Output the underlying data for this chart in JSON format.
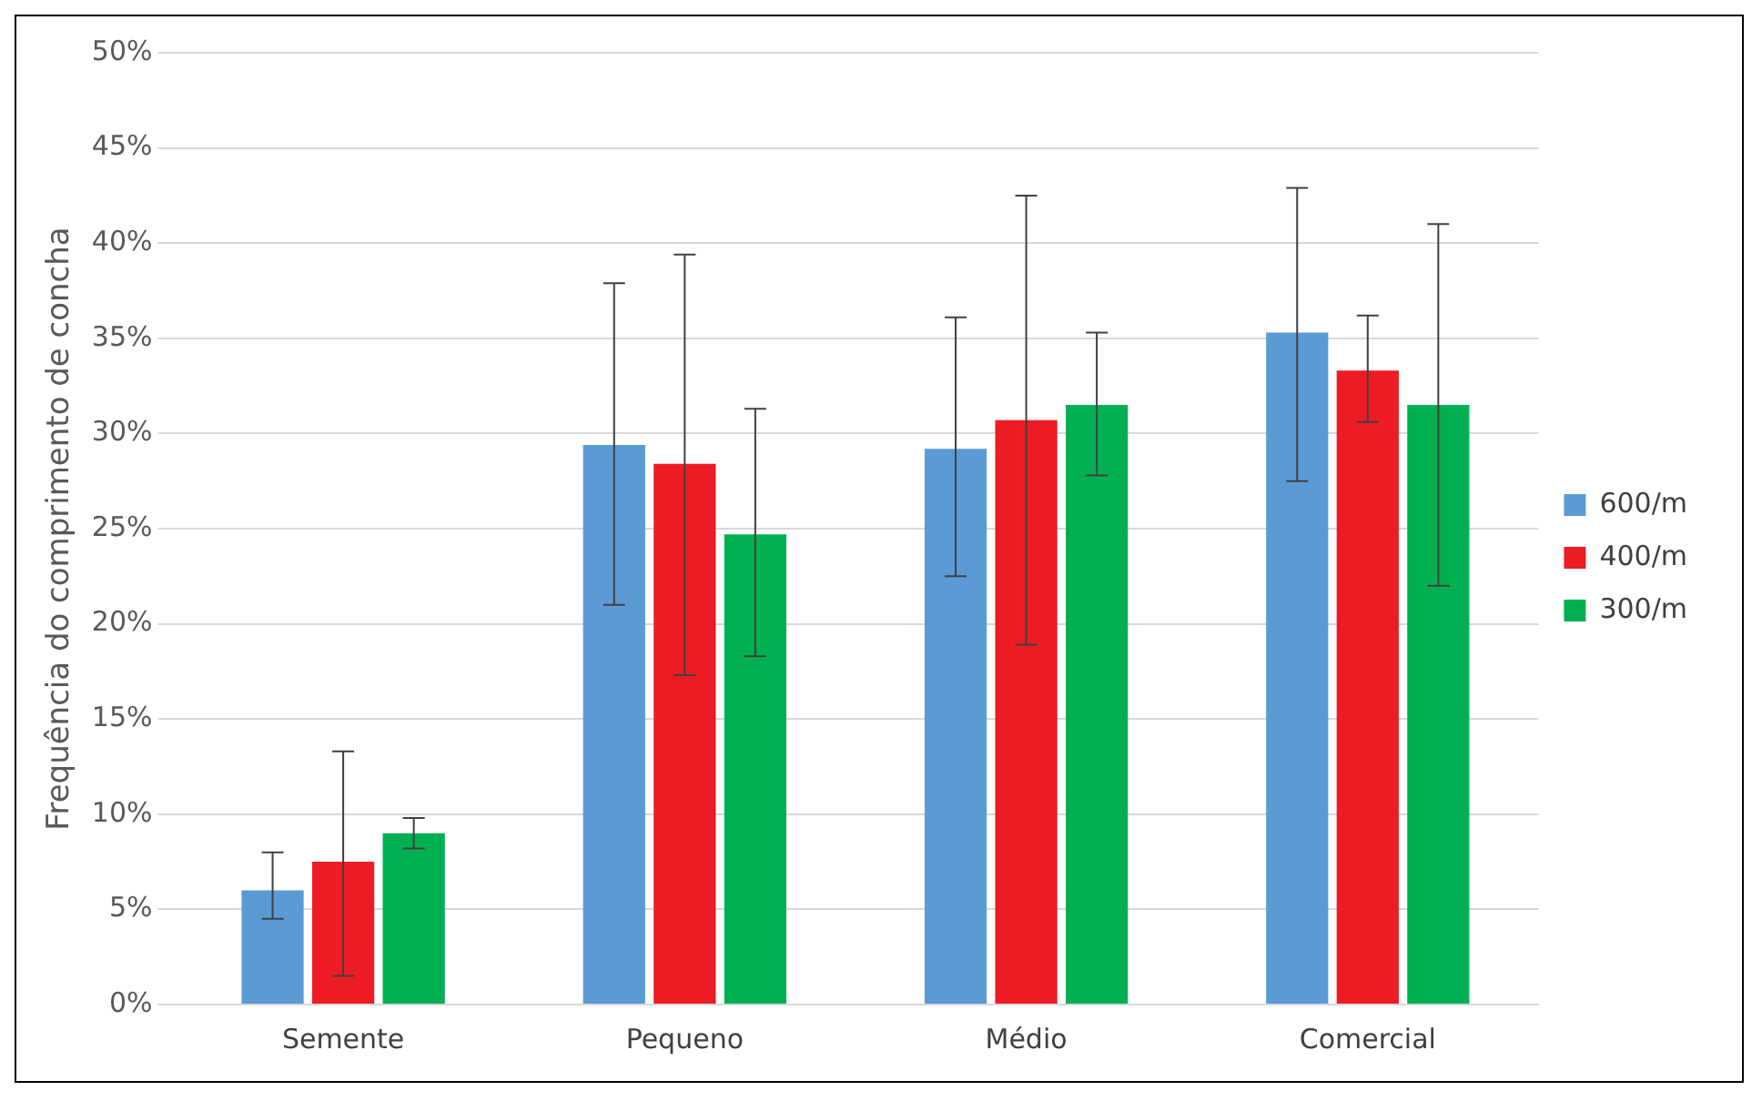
{
  "chart_data": {
    "type": "bar",
    "ylabel": "Frequência do comprimento de concha",
    "categories": [
      "Semente",
      "Pequeno",
      "Médio",
      "Comercial"
    ],
    "series": [
      {
        "name": "600/m",
        "color": "#5b9bd5",
        "values": [
          6.0,
          29.4,
          29.2,
          35.3
        ],
        "errors": [
          [
            4.5,
            8.0
          ],
          [
            21.0,
            37.9
          ],
          [
            22.5,
            36.1
          ],
          [
            27.5,
            42.9
          ]
        ]
      },
      {
        "name": "400/m",
        "color": "#ed1c24",
        "values": [
          7.5,
          28.4,
          30.7,
          33.3
        ],
        "errors": [
          [
            1.5,
            13.3
          ],
          [
            17.3,
            39.4
          ],
          [
            18.9,
            42.5
          ],
          [
            30.6,
            36.2
          ]
        ]
      },
      {
        "name": "300/m",
        "color": "#00b050",
        "values": [
          9.0,
          24.7,
          31.5,
          31.5
        ],
        "errors": [
          [
            8.2,
            9.8
          ],
          [
            18.3,
            31.3
          ],
          [
            27.8,
            35.3
          ],
          [
            22.0,
            41.0
          ]
        ]
      }
    ],
    "ylim": [
      0,
      50
    ],
    "yticks": [
      {
        "value": 0,
        "label": "0%"
      },
      {
        "value": 5,
        "label": "5%"
      },
      {
        "value": 10,
        "label": "10%"
      },
      {
        "value": 15,
        "label": "15%"
      },
      {
        "value": 20,
        "label": "20%"
      },
      {
        "value": 25,
        "label": "25%"
      },
      {
        "value": 30,
        "label": "30%"
      },
      {
        "value": 35,
        "label": "35%"
      },
      {
        "value": 40,
        "label": "40%"
      },
      {
        "value": 45,
        "label": "45%"
      },
      {
        "value": 50,
        "label": "50%"
      }
    ],
    "grid": "y",
    "legend": "right"
  }
}
